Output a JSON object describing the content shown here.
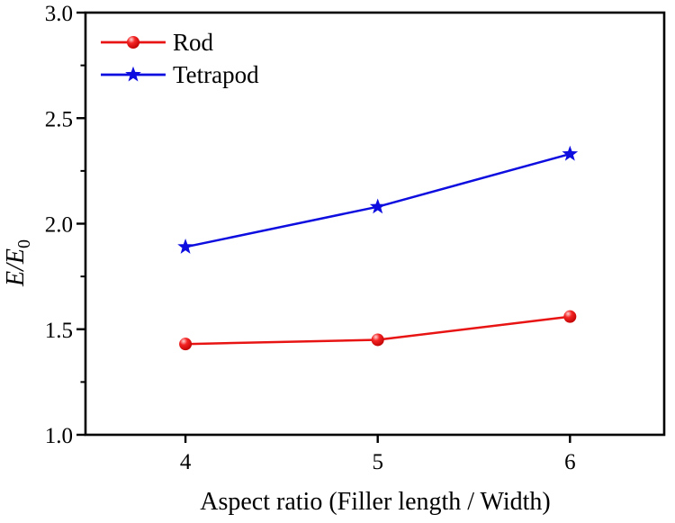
{
  "chart_data": {
    "type": "line",
    "title": "",
    "xlabel": "Aspect ratio (Filler length / Width)",
    "ylabel": "E/E0",
    "ylabel_main": "E/E",
    "ylabel_sub": "0",
    "x": [
      4,
      5,
      6
    ],
    "series": [
      {
        "name": "Rod",
        "marker": "circle",
        "color": "#e81414",
        "values": [
          1.43,
          1.45,
          1.56
        ]
      },
      {
        "name": "Tetrapod",
        "marker": "star",
        "color": "#0d0de0",
        "values": [
          1.89,
          2.08,
          2.33
        ]
      }
    ],
    "xlim": [
      3.48,
      6.49
    ],
    "ylim": [
      1.0,
      3.0
    ],
    "x_ticks": [
      4,
      5,
      6
    ],
    "x_tick_labels": [
      "4",
      "5",
      "6"
    ],
    "y_ticks": [
      1.0,
      1.5,
      2.0,
      2.5,
      3.0
    ],
    "y_tick_labels": [
      "1.0",
      "1.5",
      "2.0",
      "2.5",
      "3.0"
    ],
    "y_minor_ticks": [
      1.25,
      1.75,
      2.25,
      2.75
    ],
    "grid": false,
    "legend_position": "top-left"
  },
  "colors": {
    "background": "#ffffff",
    "axis": "#000000",
    "rod_series": "#e81414",
    "tetrapod_series": "#0d0de0"
  }
}
